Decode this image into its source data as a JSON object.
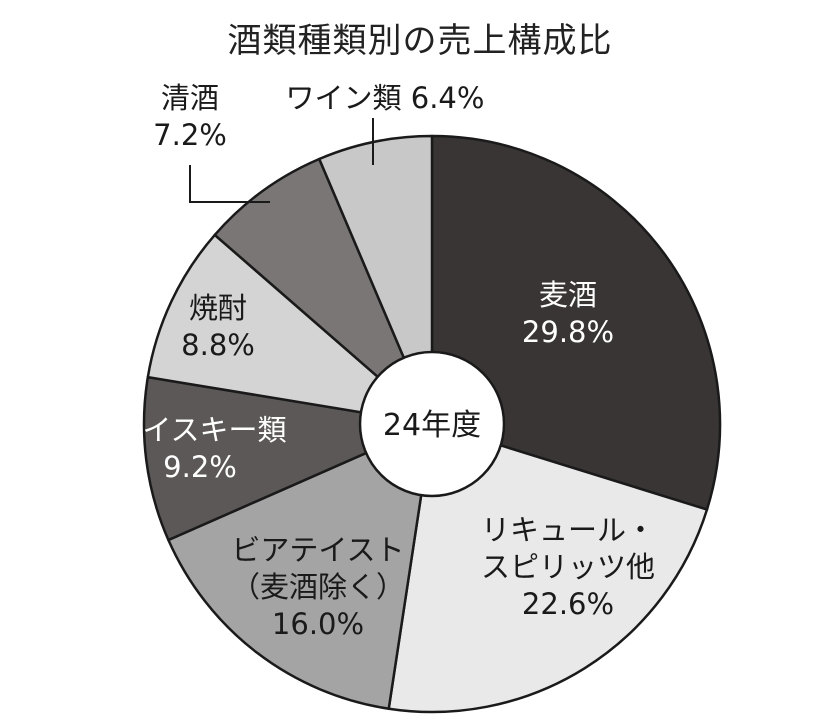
{
  "chart_data": {
    "type": "pie",
    "donut": true,
    "title": "酒類種類別の売上構成比",
    "center_label": "24年度",
    "slices": [
      {
        "label_lines": [
          "麦酒"
        ],
        "value": 29.8,
        "value_label": "29.8%",
        "color": "#3a3535",
        "text_color": "#ffffff"
      },
      {
        "label_lines": [
          "リキュール・",
          "スピリッツ他"
        ],
        "value": 22.6,
        "value_label": "22.6%",
        "color": "#e9e9e9",
        "text_color": "#1a1a1a"
      },
      {
        "label_lines": [
          "ビアテイスト",
          "（麦酒除く）"
        ],
        "value": 16.0,
        "value_label": "16.0%",
        "color": "#a4a4a4",
        "text_color": "#1a1a1a"
      },
      {
        "label_lines": [
          "ウイスキー類"
        ],
        "value": 9.2,
        "value_label": "9.2%",
        "color": "#5c5858",
        "text_color": "#ffffff"
      },
      {
        "label_lines": [
          "焼酎"
        ],
        "value": 8.8,
        "value_label": "8.8%",
        "color": "#d4d4d4",
        "text_color": "#1a1a1a"
      },
      {
        "label_lines": [
          "清酒"
        ],
        "value": 7.2,
        "value_label": "7.2%",
        "color": "#7a7676",
        "text_color": "#1a1a1a"
      },
      {
        "label_lines": [
          "ワイン類"
        ],
        "value": 6.4,
        "value_label": "6.4%",
        "color": "#c8c8c8",
        "text_color": "#1a1a1a"
      }
    ]
  }
}
